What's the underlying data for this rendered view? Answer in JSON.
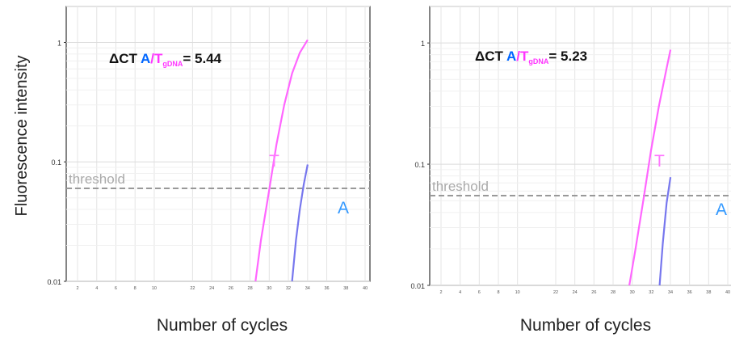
{
  "ylabel": "Fluorescence intensity",
  "chart_data": [
    {
      "type": "line",
      "yscale": "log",
      "ylim": [
        0.01,
        2
      ],
      "xlim": [
        1,
        40
      ],
      "xlabel": "Number of cycles",
      "ytick_labels": [
        "1",
        "0.1",
        "0.01"
      ],
      "ytick_values": [
        1,
        0.1,
        0.01
      ],
      "xtick_labels": [
        "2",
        "4",
        "6",
        "8",
        "10",
        "22",
        "24",
        "26",
        "28",
        "30",
        "32",
        "34",
        "36",
        "38",
        "40"
      ],
      "xtick_values": [
        2,
        4,
        6,
        8,
        10,
        14,
        16,
        18,
        20,
        22,
        24,
        26,
        28,
        30,
        32
      ],
      "grid": true,
      "threshold": {
        "label": "threshold",
        "value": 0.06
      },
      "annotation": {
        "prefix": "ΔCT ",
        "a": "A",
        "slash": "/",
        "t": "T",
        "sub": "gDNA",
        "suffix": "= 5.44"
      },
      "series": [
        {
          "name": "T",
          "color": "#ff66ff",
          "x": [
            25.3,
            26,
            27,
            28,
            29,
            30,
            31,
            32
          ],
          "y": [
            0.01,
            0.022,
            0.055,
            0.14,
            0.3,
            0.55,
            0.82,
            1.05
          ]
        },
        {
          "name": "A",
          "color": "#7777ee",
          "x": [
            30,
            30.5,
            31,
            31.5,
            32
          ],
          "y": [
            0.01,
            0.022,
            0.04,
            0.065,
            0.095
          ]
        }
      ],
      "colors": {
        "a": "#0066ff",
        "t": "#ff33ff",
        "threshold": "#999999"
      }
    },
    {
      "type": "line",
      "yscale": "log",
      "ylim": [
        0.01,
        2
      ],
      "xlim": [
        1,
        40
      ],
      "xlabel": "Number of cycles",
      "ytick_labels": [
        "1",
        "0.1",
        "0.01"
      ],
      "ytick_values": [
        1,
        0.1,
        0.01
      ],
      "xtick_labels": [
        "2",
        "4",
        "6",
        "8",
        "10",
        "22",
        "24",
        "26",
        "28",
        "30",
        "32",
        "34",
        "36",
        "38",
        "40"
      ],
      "xtick_values": [
        2,
        4,
        6,
        8,
        10,
        14,
        16,
        18,
        20,
        22,
        24,
        26,
        28,
        30,
        32
      ],
      "grid": true,
      "threshold": {
        "label": "threshold",
        "value": 0.055
      },
      "annotation": {
        "prefix": "ΔCT ",
        "a": "A",
        "slash": "/",
        "t": "T",
        "sub": "gDNA",
        "suffix": "= 5.23"
      },
      "series": [
        {
          "name": "T",
          "color": "#ff66ff",
          "x": [
            26.7,
            27.5,
            28.5,
            29.5,
            30.5,
            31.5,
            32
          ],
          "y": [
            0.01,
            0.02,
            0.05,
            0.13,
            0.3,
            0.62,
            0.88
          ]
        },
        {
          "name": "A",
          "color": "#7777ee",
          "x": [
            30.6,
            31,
            31.5,
            32
          ],
          "y": [
            0.01,
            0.022,
            0.048,
            0.078
          ]
        }
      ],
      "colors": {
        "a": "#0066ff",
        "t": "#ff33ff",
        "threshold": "#999999"
      }
    }
  ]
}
